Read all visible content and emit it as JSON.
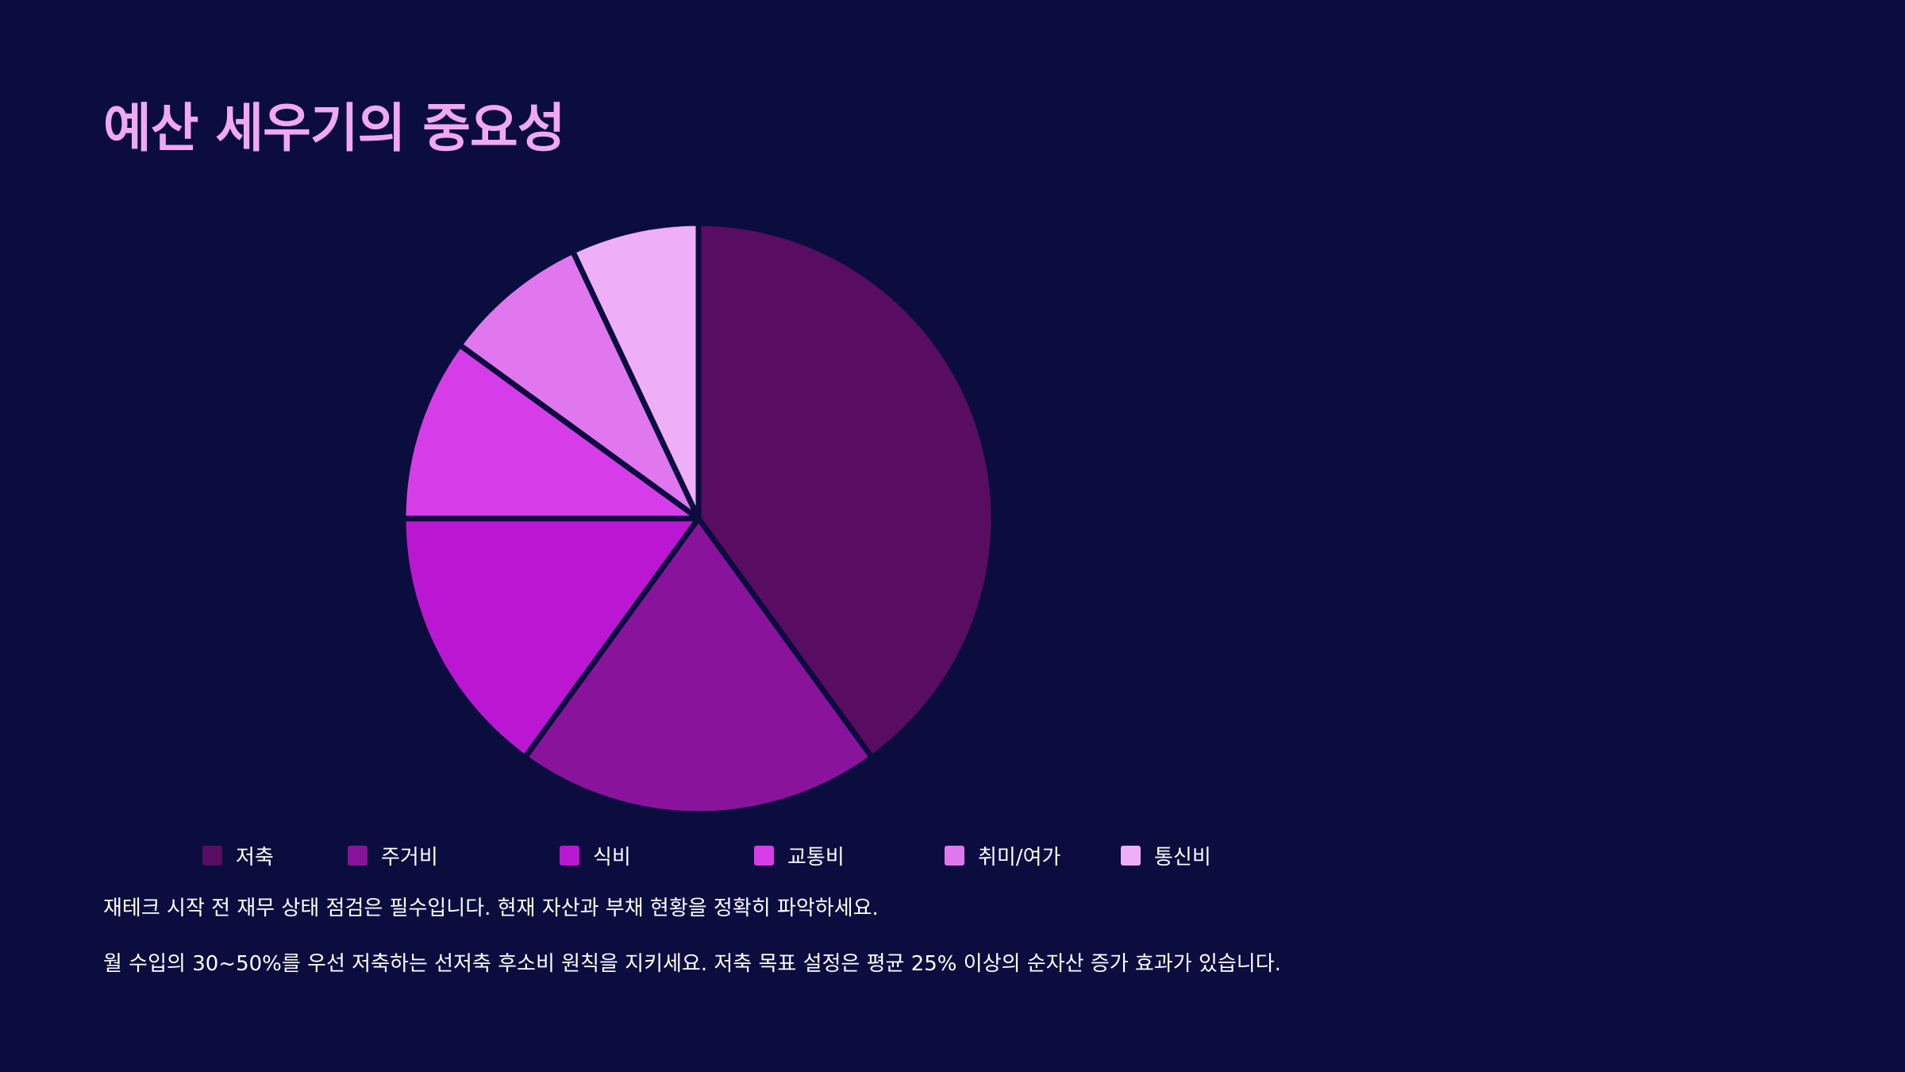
{
  "title": "예산 세우기의 중요성",
  "colors": {
    "background": "#0a0d3e",
    "title": "#f0a8f4",
    "slice_border": "#0a0d3e"
  },
  "chart_data": {
    "type": "pie",
    "title": "",
    "start_angle": "12 o'clock",
    "direction": "clockwise",
    "legend_position": "bottom",
    "slices": [
      {
        "label": "저축",
        "value": 40,
        "color": "#580c62"
      },
      {
        "label": "주거비",
        "value": 20,
        "color": "#8a139c"
      },
      {
        "label": "식비",
        "value": 15,
        "color": "#bb17d2"
      },
      {
        "label": "교통비",
        "value": 10,
        "color": "#d63de8"
      },
      {
        "label": "취미/여가",
        "value": 8,
        "color": "#e177ef"
      },
      {
        "label": "통신비",
        "value": 7,
        "color": "#efaef8"
      }
    ]
  },
  "paragraphs": [
    "재테크 시작 전 재무 상태 점검은 필수입니다. 현재 자산과 부채 현황을 정확히 파악하세요.",
    "월 수입의 30~50%를 우선 저축하는 선저축 후소비 원칙을 지키세요. 저축 목표 설정은 평균 25% 이상의 순자산 증가 효과가 있습니다."
  ]
}
